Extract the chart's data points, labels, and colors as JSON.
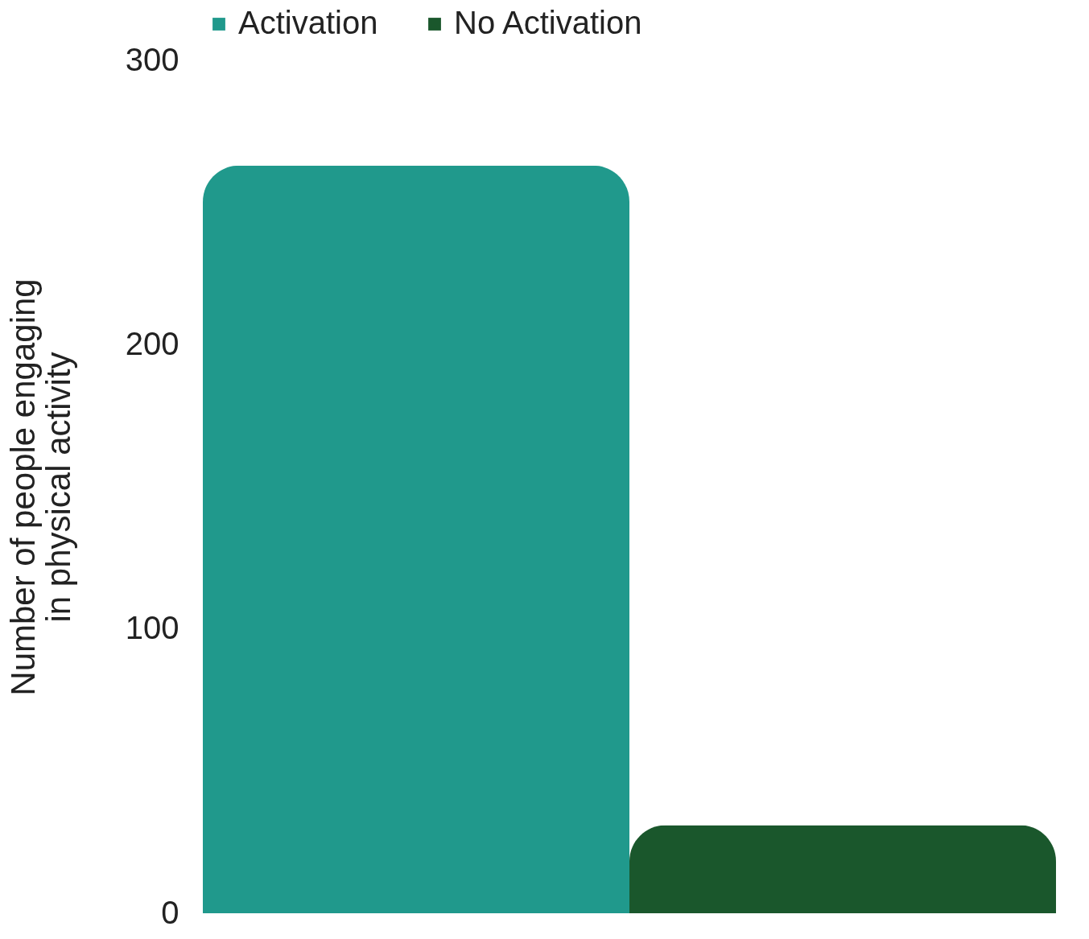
{
  "chart_data": {
    "type": "bar",
    "ylabel": "Number of people engaging in physical activity",
    "categories": [
      null
    ],
    "series": [
      {
        "name": "Activation",
        "color": "#20998c",
        "values": [
          263
        ]
      },
      {
        "name": "No Activation",
        "color": "#1a572c",
        "values": [
          31
        ]
      }
    ],
    "ylim": [
      0,
      300
    ],
    "yticks": [
      0,
      100,
      200,
      300
    ],
    "grid": false,
    "legend": "top"
  }
}
